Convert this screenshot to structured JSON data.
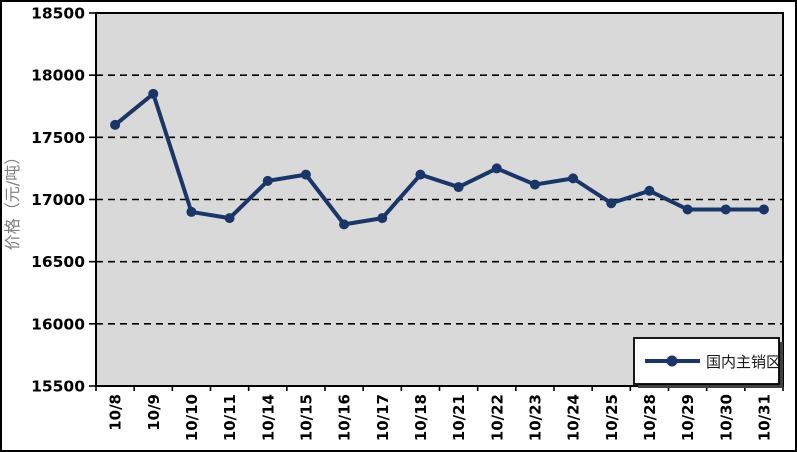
{
  "chart_data": {
    "type": "line",
    "title": "",
    "xlabel": "",
    "ylabel": "价格（元/吨）",
    "categories": [
      "10/8",
      "10/9",
      "10/10",
      "10/11",
      "10/14",
      "10/15",
      "10/16",
      "10/17",
      "10/18",
      "10/21",
      "10/22",
      "10/23",
      "10/24",
      "10/25",
      "10/28",
      "10/29",
      "10/30",
      "10/31"
    ],
    "series": [
      {
        "name": "国内主销区",
        "values": [
          17600,
          17850,
          16900,
          16850,
          17150,
          17200,
          16800,
          16850,
          17200,
          17100,
          17250,
          17120,
          17170,
          16970,
          17070,
          16920,
          16920,
          16920
        ]
      }
    ],
    "ylim": [
      15500,
      18500
    ],
    "yticks": [
      15500,
      16000,
      16500,
      17000,
      17500,
      18000,
      18500
    ],
    "grid": "horizontal-dashed",
    "legend_position": "bottom-right-inside",
    "marker": "circle",
    "colors": {
      "series": "#1A3668",
      "plot_bg": "#D9D9D9",
      "grid_line": "#000000",
      "axis_text": "#000000",
      "ylabel_text": "#7F7F7F",
      "plot_border": "#000000",
      "legend_bg": "#FFFFFF",
      "legend_border": "#000000",
      "legend_shadow": "#404040",
      "legend_text": "#1A1A1A"
    }
  }
}
